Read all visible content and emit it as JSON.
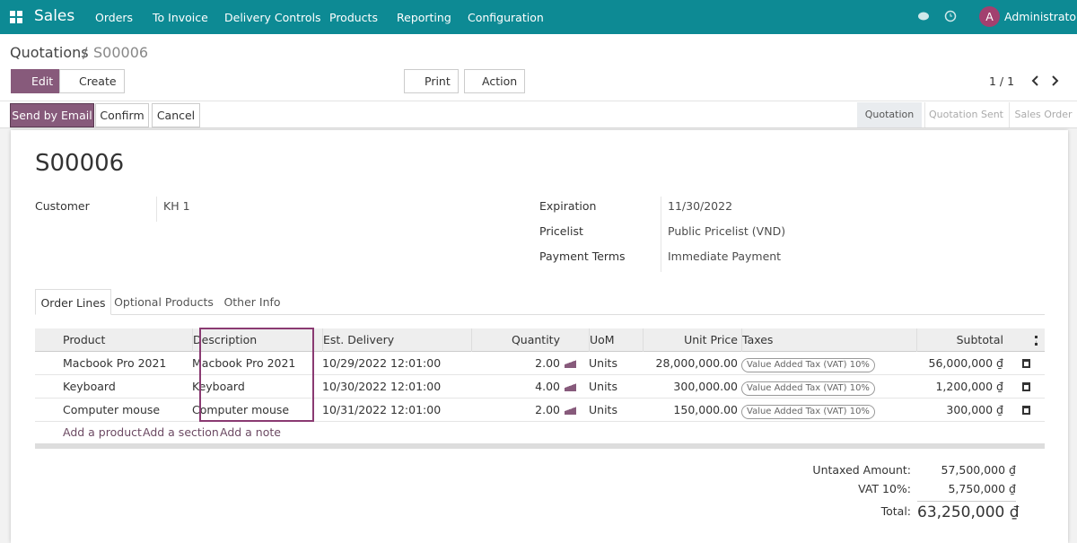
{
  "navbar": {
    "app": "Sales",
    "menu": [
      "Orders",
      "To Invoice",
      "Delivery Controls",
      "Products",
      "Reporting",
      "Configuration"
    ],
    "avatar": "A",
    "user": "Administrator"
  },
  "breadcrumb": {
    "parent": "Quotations",
    "separator": "/",
    "current": "S00006"
  },
  "buttons": {
    "edit": "Edit",
    "create": "Create",
    "print": "Print",
    "action": "Action"
  },
  "pager": "1 / 1",
  "status_buttons": [
    "Send by Email",
    "Confirm",
    "Cancel"
  ],
  "stages": [
    "Quotation",
    "Quotation Sent",
    "Sales Order"
  ],
  "form": {
    "name": "S00006",
    "fields_left": [
      {
        "label": "Customer",
        "value": "KH 1"
      }
    ],
    "fields_right": [
      {
        "label": "Expiration",
        "value": "11/30/2022"
      },
      {
        "label": "Pricelist",
        "value": "Public Pricelist (VND)"
      },
      {
        "label": "Payment Terms",
        "value": "Immediate Payment"
      }
    ]
  },
  "tabs": [
    "Order Lines",
    "Optional Products",
    "Other Info"
  ],
  "table": {
    "columns": [
      "Product",
      "Description",
      "Est. Delivery",
      "Quantity",
      "UoM",
      "Unit Price",
      "Taxes",
      "Subtotal"
    ],
    "rows": [
      [
        "Macbook Pro 2021",
        "Macbook Pro 2021",
        "10/29/2022 12:01:00",
        "2.00",
        "Units",
        "28,000,000.00",
        "Value Added Tax (VAT) 10%",
        "56,000,000 ₫"
      ],
      [
        "Keyboard",
        "Keyboard",
        "10/30/2022 12:01:00",
        "4.00",
        "Units",
        "300,000.00",
        "Value Added Tax (VAT) 10%",
        "1,200,000 ₫"
      ],
      [
        "Computer mouse",
        "Computer mouse",
        "10/31/2022 12:01:00",
        "2.00",
        "Units",
        "150,000.00",
        "Value Added Tax (VAT) 10%",
        "300,000 ₫"
      ]
    ]
  },
  "add_links": [
    "Add a product",
    "Add a section",
    "Add a note"
  ],
  "totals": [
    {
      "label": "Untaxed Amount:",
      "value": "57,500,000 ₫"
    },
    {
      "label": "VAT 10%:",
      "value": "5,750,000 ₫"
    },
    {
      "label": "Total:",
      "value": "63,250,000 ₫"
    }
  ]
}
